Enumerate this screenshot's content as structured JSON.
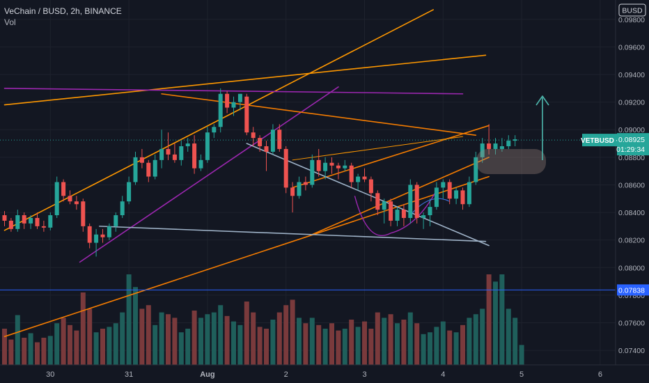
{
  "header": {
    "symbol_line": "VeChain / BUSD, 2h, BINANCE",
    "volume_label": "Vol"
  },
  "currency_badge": "BUSD",
  "price_tag": {
    "ticker": "VETBUSD",
    "price": "0.08925",
    "countdown": "01:29:34",
    "color": "#26a69a"
  },
  "hline_tag": {
    "price": "0.07838",
    "color": "#2962ff"
  },
  "colors": {
    "background": "#131722",
    "up": "#26a69a",
    "down": "#ef5350",
    "up_volume": "#1f5f5b",
    "down_volume": "#7a3a3c",
    "grid": "#1e222d",
    "orange": "#ff9800",
    "dark_orange": "#f57c00",
    "purple": "#9c27b0",
    "light_blue": "#9fb3c8",
    "teal_arrow": "#4db6ac",
    "highlight": "#a1887f"
  },
  "chart_data": {
    "type": "candlestick",
    "y_axis": {
      "range": [
        0.0734,
        0.099
      ],
      "ticks": [
        "0.07400",
        "0.07600",
        "0.07800",
        "0.08000",
        "0.08200",
        "0.08400",
        "0.08600",
        "0.08800",
        "0.09000",
        "0.09200",
        "0.09400",
        "0.09600",
        "0.09800"
      ]
    },
    "x_axis": {
      "ticks": [
        {
          "label": "30",
          "index": 7
        },
        {
          "label": "31",
          "index": 19
        },
        {
          "label": "Aug",
          "index": 31
        },
        {
          "label": "2",
          "index": 43
        },
        {
          "label": "3",
          "index": 55
        },
        {
          "label": "4",
          "index": 67
        },
        {
          "label": "5",
          "index": 79
        },
        {
          "label": "6",
          "index": 91
        }
      ]
    },
    "candles": [
      [
        0.0838,
        0.0841,
        0.083,
        0.0834
      ],
      [
        0.0834,
        0.0836,
        0.0826,
        0.0828
      ],
      [
        0.0828,
        0.0842,
        0.0826,
        0.0838
      ],
      [
        0.0838,
        0.084,
        0.0828,
        0.0832
      ],
      [
        0.0832,
        0.0838,
        0.0828,
        0.0836
      ],
      [
        0.0836,
        0.084,
        0.0828,
        0.083
      ],
      [
        0.083,
        0.0834,
        0.0826,
        0.0829
      ],
      [
        0.0829,
        0.084,
        0.0827,
        0.0838
      ],
      [
        0.0838,
        0.0866,
        0.0836,
        0.0862
      ],
      [
        0.0862,
        0.0864,
        0.0848,
        0.0852
      ],
      [
        0.0852,
        0.0856,
        0.0846,
        0.0848
      ],
      [
        0.0848,
        0.0852,
        0.0842,
        0.0846
      ],
      [
        0.0848,
        0.085,
        0.0826,
        0.083
      ],
      [
        0.083,
        0.0832,
        0.0814,
        0.0818
      ],
      [
        0.0818,
        0.0828,
        0.0808,
        0.0824
      ],
      [
        0.0824,
        0.0828,
        0.0818,
        0.0822
      ],
      [
        0.0822,
        0.0832,
        0.082,
        0.083
      ],
      [
        0.083,
        0.084,
        0.0826,
        0.0838
      ],
      [
        0.0838,
        0.0852,
        0.0836,
        0.0848
      ],
      [
        0.0848,
        0.0866,
        0.0846,
        0.0862
      ],
      [
        0.0862,
        0.0884,
        0.086,
        0.088
      ],
      [
        0.088,
        0.0886,
        0.0872,
        0.0876
      ],
      [
        0.0876,
        0.0878,
        0.0862,
        0.0866
      ],
      [
        0.0866,
        0.0882,
        0.0864,
        0.0878
      ],
      [
        0.0878,
        0.09,
        0.0872,
        0.0886
      ],
      [
        0.0886,
        0.0898,
        0.0878,
        0.0882
      ],
      [
        0.0882,
        0.089,
        0.0876,
        0.0878
      ],
      [
        0.0878,
        0.0892,
        0.0874,
        0.0888
      ],
      [
        0.0888,
        0.0894,
        0.0884,
        0.089
      ],
      [
        0.089,
        0.0896,
        0.0868,
        0.0872
      ],
      [
        0.0872,
        0.0882,
        0.087,
        0.0878
      ],
      [
        0.0878,
        0.0902,
        0.0876,
        0.0898
      ],
      [
        0.0898,
        0.0904,
        0.0894,
        0.0902
      ],
      [
        0.0902,
        0.093,
        0.0898,
        0.0926
      ],
      [
        0.0926,
        0.0928,
        0.0912,
        0.0916
      ],
      [
        0.0916,
        0.0924,
        0.091,
        0.092
      ],
      [
        0.092,
        0.0926,
        0.0914,
        0.0926
      ],
      [
        0.0924,
        0.0926,
        0.0896,
        0.0898
      ],
      [
        0.0898,
        0.0902,
        0.0888,
        0.0894
      ],
      [
        0.0894,
        0.0896,
        0.0884,
        0.0888
      ],
      [
        0.0888,
        0.0892,
        0.087,
        0.0884
      ],
      [
        0.0884,
        0.0904,
        0.0882,
        0.09
      ],
      [
        0.09,
        0.0904,
        0.0884,
        0.0886
      ],
      [
        0.0886,
        0.0888,
        0.0854,
        0.0858
      ],
      [
        0.0858,
        0.0862,
        0.084,
        0.0852
      ],
      [
        0.0852,
        0.0866,
        0.085,
        0.0862
      ],
      [
        0.0862,
        0.0866,
        0.0856,
        0.086
      ],
      [
        0.086,
        0.0882,
        0.0858,
        0.0878
      ],
      [
        0.0878,
        0.0886,
        0.0866,
        0.087
      ],
      [
        0.087,
        0.088,
        0.0864,
        0.0876
      ],
      [
        0.0876,
        0.088,
        0.0868,
        0.0874
      ],
      [
        0.0874,
        0.0876,
        0.0864,
        0.0872
      ],
      [
        0.0872,
        0.0878,
        0.087,
        0.0874
      ],
      [
        0.0874,
        0.0876,
        0.0858,
        0.0862
      ],
      [
        0.0862,
        0.0868,
        0.0856,
        0.0866
      ],
      [
        0.0866,
        0.0872,
        0.0862,
        0.0864
      ],
      [
        0.0864,
        0.0866,
        0.0848,
        0.0854
      ],
      [
        0.0854,
        0.0856,
        0.0838,
        0.0842
      ],
      [
        0.0842,
        0.085,
        0.0832,
        0.0848
      ],
      [
        0.0848,
        0.085,
        0.083,
        0.0834
      ],
      [
        0.0834,
        0.0844,
        0.083,
        0.0842
      ],
      [
        0.0842,
        0.0846,
        0.083,
        0.0836
      ],
      [
        0.0836,
        0.0864,
        0.0832,
        0.086
      ],
      [
        0.086,
        0.0862,
        0.0832,
        0.0836
      ],
      [
        0.0836,
        0.084,
        0.0828,
        0.0838
      ],
      [
        0.0838,
        0.085,
        0.083,
        0.0844
      ],
      [
        0.0844,
        0.0862,
        0.0842,
        0.0858
      ],
      [
        0.0858,
        0.0864,
        0.085,
        0.0862
      ],
      [
        0.0862,
        0.0864,
        0.0846,
        0.085
      ],
      [
        0.085,
        0.0858,
        0.0846,
        0.0856
      ],
      [
        0.0856,
        0.0858,
        0.0842,
        0.0846
      ],
      [
        0.0846,
        0.0866,
        0.0844,
        0.0862
      ],
      [
        0.0862,
        0.0884,
        0.086,
        0.088
      ],
      [
        0.088,
        0.0894,
        0.0876,
        0.089
      ],
      [
        0.089,
        0.0904,
        0.0882,
        0.0886
      ],
      [
        0.0886,
        0.0894,
        0.0882,
        0.089
      ],
      [
        0.0886,
        0.0894,
        0.0884,
        0.0888
      ],
      [
        0.0888,
        0.0896,
        0.0886,
        0.0892
      ],
      [
        0.0892,
        0.0896,
        0.0888,
        0.0893
      ]
    ],
    "volume": [
      40,
      28,
      55,
      30,
      35,
      25,
      30,
      32,
      46,
      52,
      44,
      38,
      80,
      62,
      36,
      40,
      42,
      46,
      58,
      100,
      86,
      62,
      66,
      44,
      58,
      56,
      52,
      36,
      40,
      60,
      52,
      56,
      58,
      66,
      54,
      48,
      44,
      70,
      58,
      42,
      40,
      50,
      58,
      66,
      72,
      52,
      46,
      52,
      44,
      40,
      46,
      38,
      40,
      50,
      42,
      48,
      40,
      58,
      52,
      56,
      46,
      50,
      58,
      46,
      34,
      36,
      42,
      48,
      38,
      36,
      44,
      52,
      56,
      62,
      100,
      92,
      100,
      62,
      52,
      22
    ],
    "trendlines": [
      {
        "name": "orange-long-upper",
        "color": "#ff9800",
        "points": [
          [
            0,
            0.0918
          ],
          [
            73.5,
            0.0954
          ]
        ]
      },
      {
        "name": "orange-steep-rising",
        "color": "#ff9800",
        "points": [
          [
            0,
            0.0827
          ],
          [
            65.5,
            0.0987
          ]
        ]
      },
      {
        "name": "purple-horizontal",
        "color": "#9c27b0",
        "points": [
          [
            0,
            0.093
          ],
          [
            70,
            0.0926
          ]
        ]
      },
      {
        "name": "purple-rising",
        "color": "#9c27b0",
        "points": [
          [
            11.5,
            0.0804
          ],
          [
            51,
            0.0931
          ]
        ]
      },
      {
        "name": "dark-orange-descending",
        "color": "#f57c00",
        "points": [
          [
            24,
            0.0926
          ],
          [
            72,
            0.0896
          ]
        ]
      },
      {
        "name": "dark-orange-channel-top",
        "color": "#f57c00",
        "points": [
          [
            44,
            0.0858
          ],
          [
            74,
            0.0903
          ]
        ]
      },
      {
        "name": "dark-orange-channel-bottom",
        "color": "#f57c00",
        "points": [
          [
            47,
            0.0824
          ],
          [
            74,
            0.088
          ]
        ]
      },
      {
        "name": "dark-orange-long-support",
        "color": "#f57c00",
        "points": [
          [
            0,
            0.075
          ],
          [
            74,
            0.0866
          ]
        ]
      },
      {
        "name": "orange-thin-flat",
        "color": "#ff9800",
        "points": [
          [
            44,
            0.0878
          ],
          [
            70,
            0.0895
          ]
        ]
      },
      {
        "name": "light-blue-descending",
        "color": "#9fb3c8",
        "points": [
          [
            37,
            0.089
          ],
          [
            74,
            0.0816
          ]
        ]
      },
      {
        "name": "light-blue-baseline",
        "color": "#9fb3c8",
        "points": [
          [
            14.5,
            0.083
          ],
          [
            73.5,
            0.0819
          ]
        ]
      }
    ]
  }
}
